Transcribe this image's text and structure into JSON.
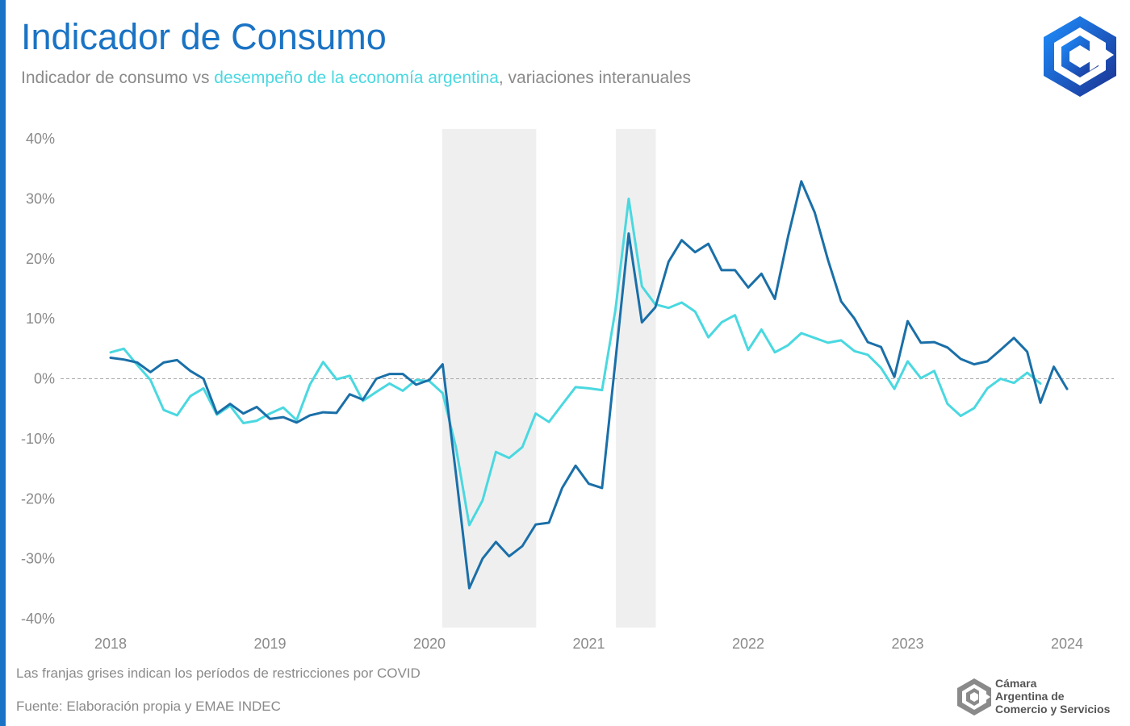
{
  "header": {
    "title": "Indicador de Consumo",
    "subtitle_part1": "Indicador de consumo vs ",
    "subtitle_highlight": "desempeño de la economía argentina",
    "subtitle_part2": ", variaciones interanuales"
  },
  "footer": {
    "note": "Las franjas grises indican los períodos de restricciones por COVID",
    "source": "Fuente: Elaboración propia y EMAE INDEC"
  },
  "organization": {
    "line1": "Cámara",
    "line2": "Argentina de",
    "line3": "Comercio y Servicios"
  },
  "colors": {
    "brand": "#1a73c4",
    "consumo": "#1a6fa8",
    "emae": "#4ad8e0",
    "shade": "#efefef"
  },
  "icons": {
    "logo_top": "cac-hexagon-logo-icon",
    "logo_bottom": "cac-hexagon-logo-icon"
  },
  "chart_data": {
    "type": "line",
    "y_axis": {
      "min": -40,
      "max": 40,
      "ticks": [
        40,
        30,
        20,
        10,
        0,
        -10,
        -20,
        -30,
        -40
      ],
      "tick_labels": [
        "40%",
        "30%",
        "20%",
        "10%",
        "0%",
        "-10%",
        "-20%",
        "-30%",
        "-40%"
      ]
    },
    "x_axis": {
      "min": 2018,
      "max": 2024.25,
      "ticks": [
        2018,
        2019,
        2020,
        2021,
        2022,
        2023,
        2024
      ],
      "tick_labels": [
        "2018",
        "2019",
        "2020",
        "2021",
        "2022",
        "2023",
        "2024"
      ]
    },
    "zero_line": "dashed",
    "shaded_periods": [
      {
        "start": 2020.08,
        "end": 2020.67
      },
      {
        "start": 2021.17,
        "end": 2021.42
      }
    ],
    "series": [
      {
        "name": "consumo",
        "color": "#1a6fa8",
        "points": [
          [
            2018.0,
            3.5
          ],
          [
            2018.083,
            3.2
          ],
          [
            2018.167,
            2.7
          ],
          [
            2018.25,
            1.1
          ],
          [
            2018.333,
            2.7
          ],
          [
            2018.417,
            3.1
          ],
          [
            2018.5,
            1.3
          ],
          [
            2018.583,
            0.0
          ],
          [
            2018.667,
            -5.8
          ],
          [
            2018.75,
            -4.2
          ],
          [
            2018.833,
            -5.8
          ],
          [
            2018.917,
            -4.7
          ],
          [
            2019.0,
            -6.7
          ],
          [
            2019.083,
            -6.4
          ],
          [
            2019.167,
            -7.3
          ],
          [
            2019.25,
            -6.1
          ],
          [
            2019.333,
            -5.6
          ],
          [
            2019.417,
            -5.7
          ],
          [
            2019.5,
            -2.6
          ],
          [
            2019.583,
            -3.5
          ],
          [
            2019.667,
            0.0
          ],
          [
            2019.75,
            0.8
          ],
          [
            2019.833,
            0.8
          ],
          [
            2019.917,
            -1.0
          ],
          [
            2020.0,
            -0.2
          ],
          [
            2020.083,
            2.4
          ],
          [
            2020.167,
            -16.0
          ],
          [
            2020.25,
            -34.9
          ],
          [
            2020.333,
            -30.0
          ],
          [
            2020.417,
            -27.2
          ],
          [
            2020.5,
            -29.6
          ],
          [
            2020.583,
            -27.9
          ],
          [
            2020.667,
            -24.3
          ],
          [
            2020.75,
            -24.0
          ],
          [
            2020.833,
            -18.2
          ],
          [
            2020.917,
            -14.5
          ],
          [
            2021.0,
            -17.5
          ],
          [
            2021.083,
            -18.2
          ],
          [
            2021.167,
            3.0
          ],
          [
            2021.25,
            24.2
          ],
          [
            2021.333,
            9.4
          ],
          [
            2021.417,
            11.9
          ],
          [
            2021.5,
            19.5
          ],
          [
            2021.583,
            23.1
          ],
          [
            2021.667,
            21.1
          ],
          [
            2021.75,
            22.5
          ],
          [
            2021.833,
            18.1
          ],
          [
            2021.917,
            18.1
          ],
          [
            2022.0,
            15.2
          ],
          [
            2022.083,
            17.5
          ],
          [
            2022.167,
            13.3
          ],
          [
            2022.25,
            23.7
          ],
          [
            2022.333,
            32.9
          ],
          [
            2022.417,
            27.7
          ],
          [
            2022.5,
            19.8
          ],
          [
            2022.583,
            12.9
          ],
          [
            2022.667,
            10.0
          ],
          [
            2022.75,
            6.1
          ],
          [
            2022.833,
            5.3
          ],
          [
            2022.917,
            0.3
          ],
          [
            2023.0,
            9.6
          ],
          [
            2023.083,
            6.0
          ],
          [
            2023.167,
            6.1
          ],
          [
            2023.25,
            5.2
          ],
          [
            2023.333,
            3.3
          ],
          [
            2023.417,
            2.4
          ],
          [
            2023.5,
            2.9
          ],
          [
            2023.583,
            4.8
          ],
          [
            2023.667,
            6.8
          ],
          [
            2023.75,
            4.5
          ],
          [
            2023.833,
            -4.0
          ],
          [
            2023.917,
            2.0
          ],
          [
            2024.0,
            -1.7
          ]
        ]
      },
      {
        "name": "EMAE",
        "color": "#4ad8e0",
        "points": [
          [
            2018.0,
            4.4
          ],
          [
            2018.083,
            5.0
          ],
          [
            2018.167,
            2.3
          ],
          [
            2018.25,
            -0.2
          ],
          [
            2018.333,
            -5.2
          ],
          [
            2018.417,
            -6.1
          ],
          [
            2018.5,
            -2.9
          ],
          [
            2018.583,
            -1.6
          ],
          [
            2018.667,
            -6.0
          ],
          [
            2018.75,
            -4.5
          ],
          [
            2018.833,
            -7.4
          ],
          [
            2018.917,
            -7.0
          ],
          [
            2019.0,
            -5.8
          ],
          [
            2019.083,
            -4.8
          ],
          [
            2019.167,
            -6.9
          ],
          [
            2019.25,
            -1.0
          ],
          [
            2019.333,
            2.8
          ],
          [
            2019.417,
            -0.1
          ],
          [
            2019.5,
            0.5
          ],
          [
            2019.583,
            -3.7
          ],
          [
            2019.667,
            -2.2
          ],
          [
            2019.75,
            -0.8
          ],
          [
            2019.833,
            -2.0
          ],
          [
            2019.917,
            -0.2
          ],
          [
            2020.0,
            -0.4
          ],
          [
            2020.083,
            -2.4
          ],
          [
            2020.167,
            -11.5
          ],
          [
            2020.25,
            -24.4
          ],
          [
            2020.333,
            -20.3
          ],
          [
            2020.417,
            -12.2
          ],
          [
            2020.5,
            -13.2
          ],
          [
            2020.583,
            -11.4
          ],
          [
            2020.667,
            -5.8
          ],
          [
            2020.75,
            -7.2
          ],
          [
            2020.833,
            -4.3
          ],
          [
            2020.917,
            -1.4
          ],
          [
            2021.0,
            -1.6
          ],
          [
            2021.083,
            -1.9
          ],
          [
            2021.167,
            11.5
          ],
          [
            2021.25,
            30.0
          ],
          [
            2021.333,
            15.4
          ],
          [
            2021.417,
            12.4
          ],
          [
            2021.5,
            11.8
          ],
          [
            2021.583,
            12.7
          ],
          [
            2021.667,
            11.2
          ],
          [
            2021.75,
            6.9
          ],
          [
            2021.833,
            9.4
          ],
          [
            2021.917,
            10.6
          ],
          [
            2022.0,
            4.8
          ],
          [
            2022.083,
            8.2
          ],
          [
            2022.167,
            4.4
          ],
          [
            2022.25,
            5.6
          ],
          [
            2022.333,
            7.6
          ],
          [
            2022.417,
            6.8
          ],
          [
            2022.5,
            6.0
          ],
          [
            2022.583,
            6.4
          ],
          [
            2022.667,
            4.6
          ],
          [
            2022.75,
            4.0
          ],
          [
            2022.833,
            1.8
          ],
          [
            2022.917,
            -1.7
          ],
          [
            2023.0,
            2.9
          ],
          [
            2023.083,
            0.1
          ],
          [
            2023.167,
            1.3
          ],
          [
            2023.25,
            -4.2
          ],
          [
            2023.333,
            -6.2
          ],
          [
            2023.417,
            -4.9
          ],
          [
            2023.5,
            -1.6
          ],
          [
            2023.583,
            0.0
          ],
          [
            2023.667,
            -0.7
          ],
          [
            2023.75,
            1.0
          ],
          [
            2023.833,
            -0.8
          ]
        ]
      }
    ]
  }
}
